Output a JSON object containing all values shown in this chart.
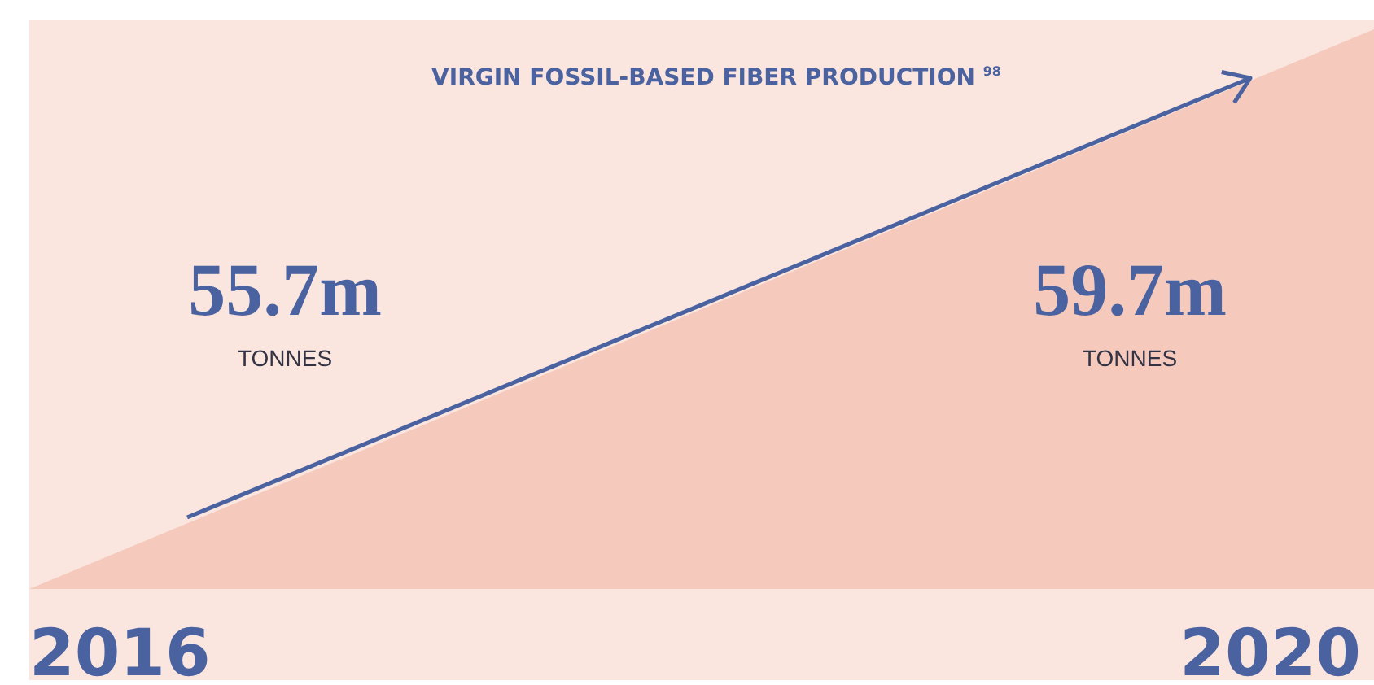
{
  "chart_data": {
    "type": "other",
    "title": "VIRGIN FOSSIL-BASED FIBER PRODUCTION $^{98}$",
    "categories": [
      "2016",
      "2020"
    ],
    "values": [
      55.7,
      59.7
    ],
    "value_labels": [
      "55.7m",
      "59.7m"
    ],
    "annotations": [
      "TONNES",
      "TONNES"
    ]
  }
}
